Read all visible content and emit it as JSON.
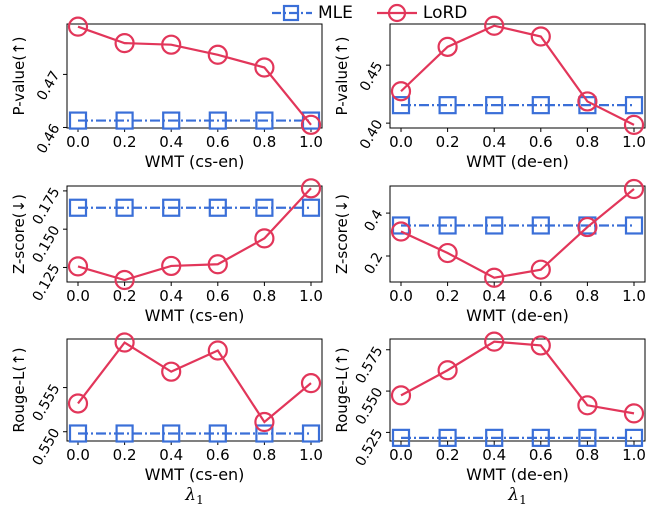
{
  "legend": [
    {
      "name": "MLE",
      "color": "#3a6fd8",
      "marker": "square",
      "linestyle": "dashdot"
    },
    {
      "name": "LoRD",
      "color": "#e2365a",
      "marker": "circle",
      "linestyle": "solid"
    }
  ],
  "chart_data": [
    {
      "type": "line",
      "panel": "top-left",
      "xlabel": "WMT (cs-en)",
      "ylabel": "P-value(↑)",
      "x": [
        0.0,
        0.2,
        0.4,
        0.6,
        0.8,
        1.0
      ],
      "xticks": [
        "0.0",
        "0.2",
        "0.4",
        "0.6",
        "0.8",
        "1.0"
      ],
      "yticks": [
        {
          "v": 0.46,
          "label": "0.46"
        },
        {
          "v": 0.47,
          "label": "0.47"
        }
      ],
      "ylim": [
        0.4599,
        0.4795
      ],
      "series": [
        {
          "name": "MLE",
          "values": [
            0.4613,
            0.4613,
            0.4613,
            0.4613,
            0.4613,
            0.4613
          ]
        },
        {
          "name": "LoRD",
          "values": [
            0.479,
            0.4759,
            0.4756,
            0.4737,
            0.4713,
            0.4605
          ]
        }
      ]
    },
    {
      "type": "line",
      "panel": "top-right",
      "xlabel": "WMT (de-en)",
      "ylabel": "P-value(↑)",
      "x": [
        0.0,
        0.2,
        0.4,
        0.6,
        0.8,
        1.0
      ],
      "xticks": [
        "0.0",
        "0.2",
        "0.4",
        "0.6",
        "0.8",
        "1.0"
      ],
      "yticks": [
        {
          "v": 0.4,
          "label": "0.40"
        },
        {
          "v": 0.45,
          "label": "0.45"
        }
      ],
      "ylim": [
        0.3958,
        0.4855
      ],
      "series": [
        {
          "name": "MLE",
          "values": [
            0.4155,
            0.4155,
            0.4155,
            0.4155,
            0.4155,
            0.4155
          ]
        },
        {
          "name": "LoRD",
          "values": [
            0.4275,
            0.4658,
            0.484,
            0.4747,
            0.4187,
            0.3985
          ]
        }
      ]
    },
    {
      "type": "line",
      "panel": "middle-left",
      "xlabel": "WMT (cs-en)",
      "ylabel": "Z-score(↓)",
      "x": [
        0.0,
        0.2,
        0.4,
        0.6,
        0.8,
        1.0
      ],
      "xticks": [
        "0.0",
        "0.2",
        "0.4",
        "0.6",
        "0.8",
        "1.0"
      ],
      "yticks": [
        {
          "v": 0.125,
          "label": "0.125"
        },
        {
          "v": 0.15,
          "label": "0.150"
        },
        {
          "v": 0.175,
          "label": "0.175"
        }
      ],
      "ylim": [
        0.1155,
        0.1782
      ],
      "series": [
        {
          "name": "MLE",
          "values": [
            0.164,
            0.164,
            0.164,
            0.164,
            0.164,
            0.164
          ]
        },
        {
          "name": "LoRD",
          "values": [
            0.1257,
            0.1168,
            0.126,
            0.1271,
            0.144,
            0.1767
          ]
        }
      ]
    },
    {
      "type": "line",
      "panel": "middle-right",
      "xlabel": "WMT (de-en)",
      "ylabel": "Z-score(↓)",
      "x": [
        0.0,
        0.2,
        0.4,
        0.6,
        0.8,
        1.0
      ],
      "xticks": [
        "0.0",
        "0.2",
        "0.4",
        "0.6",
        "0.8",
        "1.0"
      ],
      "yticks": [
        {
          "v": 0.2,
          "label": "0.2"
        },
        {
          "v": 0.4,
          "label": "0.4"
        }
      ],
      "ylim": [
        0.0788,
        0.5263
      ],
      "series": [
        {
          "name": "MLE",
          "values": [
            0.3423,
            0.3423,
            0.3423,
            0.3423,
            0.3423,
            0.3423
          ]
        },
        {
          "name": "LoRD",
          "values": [
            0.3142,
            0.2138,
            0.0986,
            0.1363,
            0.3348,
            0.5122
          ]
        }
      ]
    },
    {
      "type": "line",
      "panel": "bottom-left",
      "xlabel": "WMT (cs-en)",
      "ylabel": "Rouge-L(↑)",
      "x": [
        0.0,
        0.2,
        0.4,
        0.6,
        0.8,
        1.0
      ],
      "xticks": [
        "0.0",
        "0.2",
        "0.4",
        "0.6",
        "0.8",
        "1.0"
      ],
      "yticks": [
        {
          "v": 0.55,
          "label": "0.550"
        },
        {
          "v": 0.555,
          "label": "0.555"
        }
      ],
      "ylim": [
        0.54895,
        0.5605
      ],
      "series": [
        {
          "name": "MLE",
          "values": [
            0.5498,
            0.5498,
            0.5498,
            0.5498,
            0.5498,
            0.5498
          ]
        },
        {
          "name": "LoRD",
          "values": [
            0.5532,
            0.5601,
            0.5568,
            0.5592,
            0.5511,
            0.5555
          ]
        }
      ]
    },
    {
      "type": "line",
      "panel": "bottom-right",
      "xlabel": "WMT (de-en)",
      "ylabel": "Rouge-L(↑)",
      "x": [
        0.0,
        0.2,
        0.4,
        0.6,
        0.8,
        1.0
      ],
      "xticks": [
        "0.0",
        "0.2",
        "0.4",
        "0.6",
        "0.8",
        "1.0"
      ],
      "yticks": [
        {
          "v": 0.525,
          "label": "0.525"
        },
        {
          "v": 0.55,
          "label": "0.550"
        },
        {
          "v": 0.575,
          "label": "0.575"
        }
      ],
      "ylim": [
        0.5198,
        0.5815
      ],
      "series": [
        {
          "name": "MLE",
          "values": [
            0.5217,
            0.5217,
            0.5217,
            0.5217,
            0.5217,
            0.5217
          ]
        },
        {
          "name": "LoRD",
          "values": [
            0.5474,
            0.5626,
            0.5799,
            0.5776,
            0.5414,
            0.5365
          ]
        }
      ]
    }
  ],
  "x_axis_symbol": "λ1"
}
